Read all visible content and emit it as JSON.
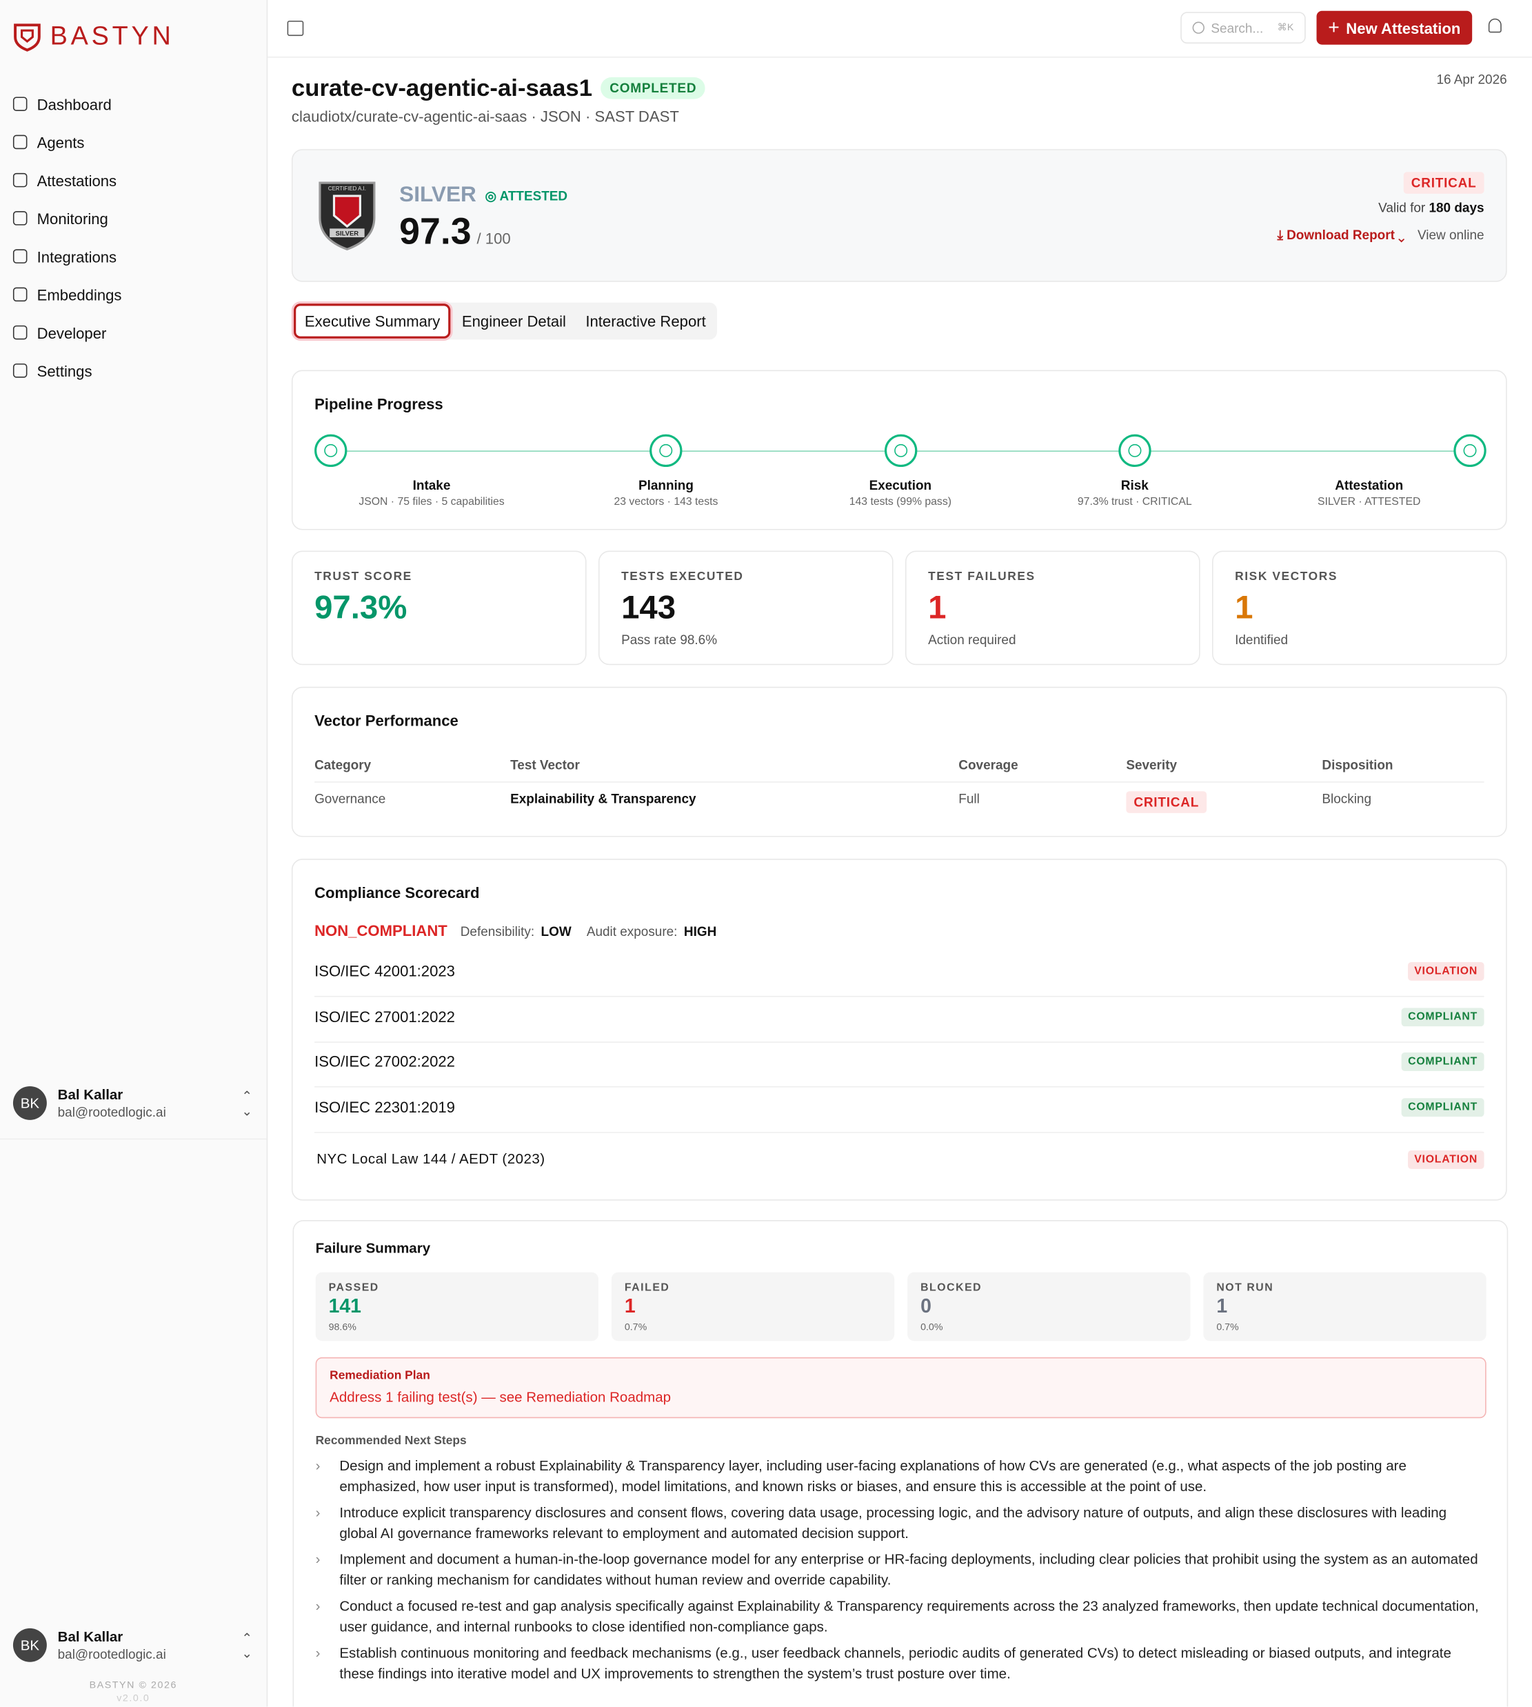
{
  "sidebar": {
    "brand": "BASTYN",
    "nav": [
      "Dashboard",
      "Agents",
      "Attestations",
      "Monitoring",
      "Integrations",
      "Embeddings",
      "Developer",
      "Settings"
    ],
    "user": {
      "initials": "BK",
      "name": "Bal Kallar",
      "email": "bal@rootedlogic.ai"
    },
    "footer": {
      "copyright": "BASTYN © 2026",
      "version": "v2.0.0"
    }
  },
  "topbar": {
    "search": "Search...",
    "shortcut": "⌘K",
    "new_button": "New Attestation"
  },
  "header": {
    "title": "curate-cv-agentic-ai-saas1",
    "status": "COMPLETED",
    "subtitle": "claudiotx/curate-cv-agentic-ai-saas · JSON · SAST DAST",
    "date": "16 Apr 2026"
  },
  "score_card": {
    "badge_top": "CERTIFIED A.I.",
    "badge_bottom": "SILVER",
    "tier": "SILVER",
    "attested": "ATTESTED",
    "score": "97.3",
    "max": "/ 100",
    "risk": "CRITICAL",
    "valid_prefix": "Valid for",
    "valid_days": "180 days",
    "download": "Download Report",
    "view": "View online"
  },
  "tabs": [
    "Executive Summary",
    "Engineer Detail",
    "Interactive Report"
  ],
  "pipeline": {
    "title": "Pipeline Progress",
    "steps": [
      {
        "label": "Intake",
        "detail": "JSON · 75 files · 5 capabilities"
      },
      {
        "label": "Planning",
        "detail": "23 vectors · 143 tests"
      },
      {
        "label": "Execution",
        "detail": "143 tests (99% pass)"
      },
      {
        "label": "Risk",
        "detail": "97.3% trust · CRITICAL"
      },
      {
        "label": "Attestation",
        "detail": "SILVER · ATTESTED"
      }
    ]
  },
  "metrics": [
    {
      "label": "TRUST SCORE",
      "value": "97.3%",
      "color": "#059669"
    },
    {
      "label": "TESTS EXECUTED",
      "value": "143",
      "note": "Pass rate 98.6%",
      "color": "#111111"
    },
    {
      "label": "TEST FAILURES",
      "value": "1",
      "note": "Action required",
      "color": "#dc2626"
    },
    {
      "label": "RISK VECTORS",
      "value": "1",
      "note": "Identified",
      "color": "#d97706"
    }
  ],
  "vector_performance": {
    "title": "Vector Performance",
    "columns": [
      "Category",
      "Test Vector",
      "Coverage",
      "Severity",
      "Disposition"
    ],
    "rows": [
      [
        "Governance",
        "Explainability & Transparency",
        "Full",
        "CRITICAL",
        "Blocking"
      ]
    ]
  },
  "compliance": {
    "title": "Compliance Scorecard",
    "status": "NON_COMPLIANT",
    "defensibility_label": "Defensibility:",
    "defensibility": "LOW",
    "exposure_label": "Audit exposure:",
    "exposure": "HIGH",
    "standards": [
      {
        "name": "ISO/IEC 42001:2023",
        "status": "VIOLATION",
        "color": "#dc2626"
      },
      {
        "name": "ISO/IEC 27001:2022",
        "status": "COMPLIANT",
        "color": "#15803d"
      },
      {
        "name": "ISO/IEC 27002:2022",
        "status": "COMPLIANT",
        "color": "#15803d"
      },
      {
        "name": "ISO/IEC 22301:2019",
        "status": "COMPLIANT",
        "color": "#15803d"
      },
      {
        "name": "NYC Local Law 144 / AEDT (2023)",
        "status": "VIOLATION",
        "color": "#dc2626"
      }
    ]
  },
  "failure_summary": {
    "title": "Failure Summary",
    "stats": [
      {
        "label": "PASSED",
        "value": "141",
        "pct": "98.6%",
        "color": "#059669"
      },
      {
        "label": "FAILED",
        "value": "1",
        "pct": "0.7%",
        "color": "#dc2626"
      },
      {
        "label": "BLOCKED",
        "value": "0",
        "pct": "0.0%",
        "color": "#6b7280"
      },
      {
        "label": "NOT RUN",
        "value": "1",
        "pct": "0.7%",
        "color": "#6b7280"
      }
    ],
    "remediation": {
      "title": "Remediation Plan",
      "text": "Address 1 failing test(s) — see Remediation Roadmap"
    },
    "next_steps_title": "Recommended Next Steps",
    "next_steps": [
      "Design and implement a robust Explainability & Transparency layer, including user-facing explanations of how CVs are generated (e.g., what aspects of the job posting are emphasized, how user input is transformed), model limitations, and known risks or biases, and ensure this is accessible at the point of use.",
      "Introduce explicit transparency disclosures and consent flows, covering data usage, processing logic, and the advisory nature of outputs, and align these disclosures with leading global AI governance frameworks relevant to employment and automated decision support.",
      "Implement and document a human-in-the-loop governance model for any enterprise or HR-facing deployments, including clear policies that prohibit using the system as an automated filter or ranking mechanism for candidates without human review and override capability.",
      "Conduct a focused re-test and gap analysis specifically against Explainability & Transparency requirements across the 23 analyzed frameworks, then update technical documentation, user guidance, and internal runbooks to close identified non-compliance gaps.",
      "Establish continuous monitoring and feedback mechanisms (e.g., user feedback channels, periodic audits of generated CVs) to detect misleading or biased outputs, and integrate these findings into iterative model and UX improvements to strengthen the system’s trust posture over time."
    ]
  }
}
